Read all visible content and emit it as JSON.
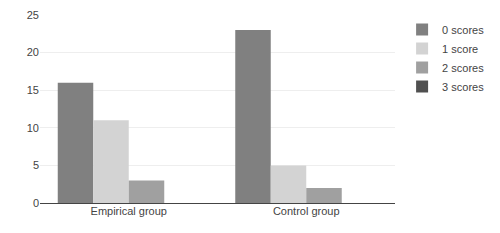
{
  "chart_data": {
    "type": "bar",
    "categories": [
      "Empirical group",
      "Control group"
    ],
    "series": [
      {
        "name": "0 scores",
        "color": "#808080",
        "values": [
          16,
          23
        ]
      },
      {
        "name": "1 score",
        "color": "#d3d3d3",
        "values": [
          11,
          5
        ]
      },
      {
        "name": "2 scores",
        "color": "#a0a0a0",
        "values": [
          3,
          2
        ]
      },
      {
        "name": "3 scores",
        "color": "#505050",
        "values": [
          0,
          0
        ]
      }
    ],
    "ylim": [
      0,
      25
    ],
    "yticks": [
      0,
      5,
      10,
      15,
      20,
      25
    ],
    "grid": true,
    "legend": "right"
  }
}
